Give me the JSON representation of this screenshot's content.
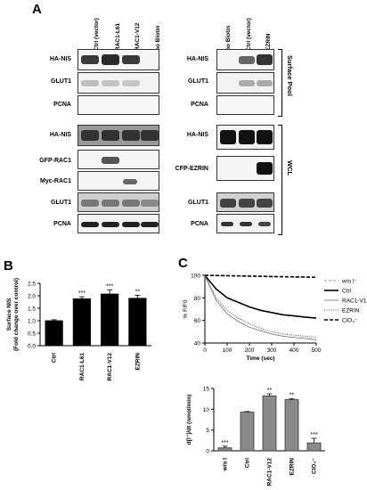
{
  "panel_labels": {
    "a": "A",
    "b": "B",
    "c": "C"
  },
  "blot_left": {
    "columns": [
      "Ctrl (vector)",
      "RAC1-L61",
      "RAC1-V12",
      "no Biotin"
    ],
    "surface_rows": [
      "HA-NIS",
      "GLUT1",
      "PCNA"
    ],
    "wcl_rows": [
      "HA-NIS",
      "GFP-RAC1",
      "Myc-RAC1",
      "GLUT1",
      "PCNA"
    ]
  },
  "blot_right": {
    "columns": [
      "no Biotin",
      "Ctrl (vector)",
      "EZRIN"
    ],
    "surface_rows": [
      "HA-NIS",
      "GLUT1",
      "PCNA"
    ],
    "wcl_rows": [
      "HA-NIS",
      "CFP-EZRIN",
      "GLUT1",
      "PCNA"
    ]
  },
  "pool_labels": {
    "surface": "Surface Pool",
    "wcl": "WCL"
  },
  "chart_data": [
    {
      "type": "bar",
      "ylabel": "Surface NIS\n(Fold change over control)",
      "categories": [
        "Ctrl",
        "RAC1-L61",
        "RAC1-V12",
        "EZRIN"
      ],
      "values": [
        1.0,
        1.88,
        2.07,
        1.9
      ],
      "errors": [
        0.04,
        0.08,
        0.17,
        0.12
      ],
      "significance": [
        "",
        "***",
        "***",
        "**"
      ],
      "ylim": [
        0,
        2.5
      ],
      "yticks": [
        "0.0",
        "0.5",
        "1.0",
        "1.5",
        "2.0",
        "2.5"
      ]
    },
    {
      "type": "line",
      "ylabel": "% F/F0",
      "xlabel": "Time (sec)",
      "xlim": [
        0,
        500
      ],
      "ylim": [
        40,
        100
      ],
      "xticks": [
        "0",
        "100",
        "200",
        "300",
        "400",
        "500"
      ],
      "yticks": [
        "40",
        "60",
        "80",
        "100"
      ],
      "series": [
        {
          "name": "w/o I⁻",
          "style": "dashed-light",
          "x": [
            0,
            100,
            200,
            300,
            400,
            500
          ],
          "y": [
            100,
            99.5,
            99.2,
            98.8,
            98.5,
            98.2
          ]
        },
        {
          "name": "Ctrl",
          "style": "solid-thick",
          "x": [
            0,
            50,
            100,
            150,
            200,
            250,
            300,
            350,
            400,
            450,
            500
          ],
          "y": [
            100,
            88,
            80,
            76,
            72,
            69,
            67,
            65,
            64,
            63,
            62
          ]
        },
        {
          "name": "RAC1-V12",
          "style": "solid-thin",
          "x": [
            0,
            50,
            100,
            150,
            200,
            250,
            300,
            350,
            400,
            450,
            500
          ],
          "y": [
            100,
            78,
            66,
            59,
            54,
            51,
            48,
            46,
            45,
            44,
            43
          ]
        },
        {
          "name": "EZRIN",
          "style": "dotted",
          "x": [
            0,
            50,
            100,
            150,
            200,
            250,
            300,
            350,
            400,
            450,
            500
          ],
          "y": [
            100,
            80,
            69,
            62,
            57,
            53,
            50,
            48,
            47,
            46,
            45
          ]
        },
        {
          "name": "ClO₄⁻",
          "style": "dashed-thick",
          "x": [
            0,
            100,
            200,
            300,
            400,
            500
          ],
          "y": [
            100,
            99.6,
            99.3,
            98.9,
            98.6,
            98.3
          ]
        }
      ]
    },
    {
      "type": "bar",
      "ylabel": "d[I⁻]/dt (nmol/min)",
      "categories": [
        "w/o I",
        "Ctrl",
        "RAC1-V12",
        "EZRIN",
        "ClO₄⁻"
      ],
      "values": [
        0.7,
        9.3,
        13.2,
        12.3,
        1.9
      ],
      "errors": [
        0.4,
        0.15,
        0.5,
        0.2,
        1.1
      ],
      "significance": [
        "***",
        "",
        "**",
        "**",
        "***"
      ],
      "ylim": [
        0,
        15
      ],
      "yticks": [
        "0",
        "5",
        "10",
        "15"
      ]
    }
  ]
}
